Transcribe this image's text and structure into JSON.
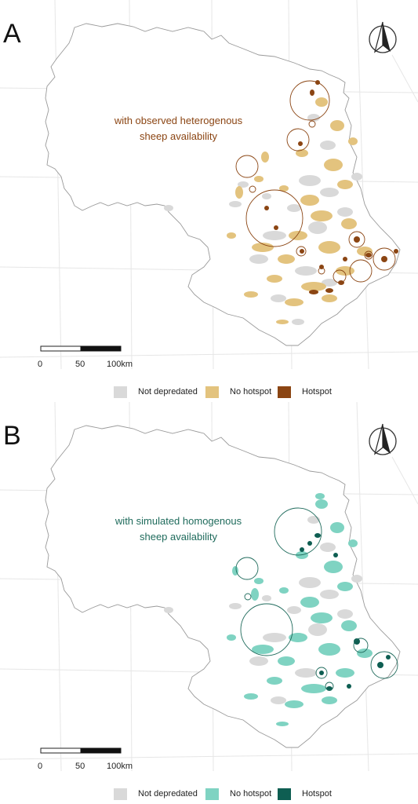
{
  "colors": {
    "not_depredated": "#d9d9d9",
    "observed_no_hotspot": "#e3c37e",
    "observed_hotspot": "#8b4513",
    "simulated_no_hotspot": "#7fd3c2",
    "simulated_hotspot": "#0e5e52",
    "outline": "#9a9a9a"
  },
  "panels": [
    {
      "letter": "A",
      "caption_line1": "with observed heterogenous",
      "caption_line2": "sheep availability",
      "scale": {
        "tick0": "0",
        "tick1": "50",
        "tick2": "100km"
      },
      "legend": [
        {
          "label": "Not depredated",
          "color": "#d9d9d9"
        },
        {
          "label": "No hotspot",
          "color": "#e3c37e"
        },
        {
          "label": "Hotspot",
          "color": "#8b4513"
        }
      ],
      "north_arrow_icon": "north-arrow-icon"
    },
    {
      "letter": "B",
      "caption_line1": "with simulated homogenous",
      "caption_line2": "sheep availability",
      "scale": {
        "tick0": "0",
        "tick1": "50",
        "tick2": "100km"
      },
      "legend": [
        {
          "label": "Not depredated",
          "color": "#d9d9d9"
        },
        {
          "label": "No hotspot",
          "color": "#7fd3c2"
        },
        {
          "label": "Hotspot",
          "color": "#0e5e52"
        }
      ],
      "north_arrow_icon": "north-arrow-icon"
    }
  ]
}
